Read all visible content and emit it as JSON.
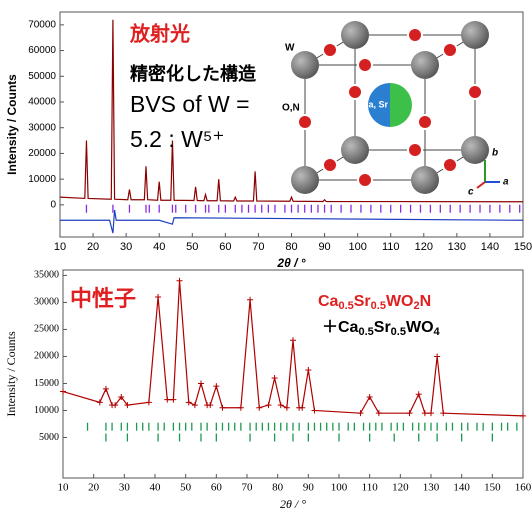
{
  "chart_data": [
    {
      "type": "line",
      "x_label": "2θ / °",
      "y_label": "Intensity / Counts",
      "annotations": [
        "放射光",
        "精密化した構造",
        "BVS of W =",
        "5.2 : W⁵⁺"
      ],
      "inset_labels": [
        "W",
        "O,N",
        "Ca, Sr",
        "b",
        "a",
        "c"
      ],
      "xlim": [
        10,
        150
      ],
      "xticks": [
        10,
        20,
        30,
        40,
        50,
        60,
        70,
        80,
        90,
        100,
        110,
        120,
        130,
        140,
        150
      ],
      "ylim": [
        -12500,
        75000
      ],
      "yticks": [
        0,
        10000,
        20000,
        30000,
        40000,
        50000,
        60000,
        70000
      ],
      "series": [
        {
          "color": "#8b0000",
          "x": [
            10,
            17.5,
            18,
            18.5,
            25.5,
            26,
            26.5,
            30.5,
            31,
            31.5,
            35.5,
            36,
            36.5,
            39.5,
            40,
            40.5,
            43.5,
            44,
            44.5,
            50.5,
            51,
            51.5,
            53.5,
            54,
            54.5,
            57.5,
            58,
            58.5,
            62.5,
            63,
            63.5,
            68.5,
            69,
            69.5,
            79.5,
            80,
            80.5,
            89.5,
            90,
            90.5,
            150
          ],
          "values": [
            3000,
            2500,
            25000,
            2500,
            2200,
            72000,
            2200,
            2000,
            6000,
            2000,
            2000,
            15000,
            2000,
            1800,
            9000,
            1800,
            1800,
            25000,
            1800,
            1700,
            7000,
            1700,
            1600,
            4000,
            1600,
            1600,
            10000,
            1600,
            1500,
            3000,
            1500,
            1500,
            13000,
            1500,
            1400,
            3000,
            1400,
            1300,
            2000,
            1300,
            1200
          ]
        },
        {
          "color": "#1f3fbf",
          "x": [
            10,
            25,
            26,
            26.5,
            27,
            40,
            44,
            44.5,
            150
          ],
          "values": [
            -6000,
            -6000,
            -11000,
            -2000,
            -6000,
            -6000,
            -7500,
            -5000,
            -6000
          ]
        }
      ],
      "reflections": [
        {
          "color": "#8a2be2",
          "y": -1500,
          "x": [
            18,
            26,
            31,
            36,
            37,
            40,
            44,
            45,
            48,
            51,
            54,
            55,
            58,
            60,
            63,
            65,
            67,
            69,
            71,
            73,
            75,
            78,
            80,
            82,
            84,
            86,
            88,
            90,
            92,
            95,
            98,
            101,
            104,
            107,
            110,
            113,
            116,
            119,
            122,
            125,
            128,
            131,
            134,
            137,
            140,
            143,
            146,
            149
          ]
        }
      ]
    },
    {
      "type": "line",
      "x_label": "2θ / °",
      "y_label": "Intensity / Counts",
      "annotations": [
        "中性子"
      ],
      "formula_1": [
        "Ca",
        "0.5",
        "Sr",
        "0.5",
        "WO",
        "2",
        "N"
      ],
      "formula_2": [
        "＋Ca",
        "0.5",
        "Sr",
        "0.5",
        "WO",
        "4"
      ],
      "xlim": [
        10,
        160
      ],
      "xticks": [
        10,
        20,
        30,
        40,
        50,
        60,
        70,
        80,
        90,
        100,
        110,
        120,
        130,
        140,
        150,
        160
      ],
      "ylim": [
        -2500,
        36000
      ],
      "yticks": [
        5000,
        10000,
        15000,
        20000,
        25000,
        30000,
        35000
      ],
      "series": [
        {
          "color": "#b00000",
          "x": [
            10,
            22,
            24,
            26,
            27,
            29,
            31,
            38,
            41,
            44,
            46,
            48,
            51,
            53,
            55,
            57,
            58,
            60,
            62,
            68,
            71,
            74,
            77,
            79,
            81,
            83,
            85,
            87,
            88,
            90,
            92,
            107,
            110,
            113,
            123,
            126,
            128,
            130,
            132,
            134,
            160
          ],
          "values": [
            13500,
            11500,
            14000,
            11000,
            11000,
            12500,
            11000,
            11500,
            31000,
            12000,
            12000,
            34000,
            11500,
            11000,
            15000,
            11000,
            11000,
            14500,
            10500,
            10500,
            30500,
            10500,
            11000,
            16000,
            11000,
            10500,
            23000,
            10500,
            10500,
            17500,
            10000,
            9500,
            12500,
            9500,
            9500,
            13000,
            9500,
            9500,
            20000,
            9500,
            9000
          ]
        }
      ],
      "reflections": [
        {
          "color": "#1a9a50",
          "y": 7000,
          "x": [
            18,
            24,
            26,
            29,
            31,
            34,
            36,
            38,
            41,
            43,
            46,
            48,
            50,
            52,
            55,
            57,
            60,
            62,
            64,
            66,
            68,
            71,
            73,
            75,
            77,
            79,
            81,
            83,
            85,
            87,
            90,
            92,
            94,
            96,
            98,
            100,
            103,
            105,
            108,
            110,
            112,
            114,
            117,
            119,
            121,
            124,
            126,
            128,
            130,
            132,
            135,
            137,
            140,
            142,
            145,
            147,
            150,
            153,
            155,
            158
          ]
        },
        {
          "color": "#1a9a50",
          "y": 5000,
          "x": [
            24,
            31,
            41,
            48,
            55,
            60,
            71,
            79,
            85,
            90,
            100,
            110,
            118,
            126,
            132,
            140,
            150
          ]
        }
      ]
    }
  ]
}
